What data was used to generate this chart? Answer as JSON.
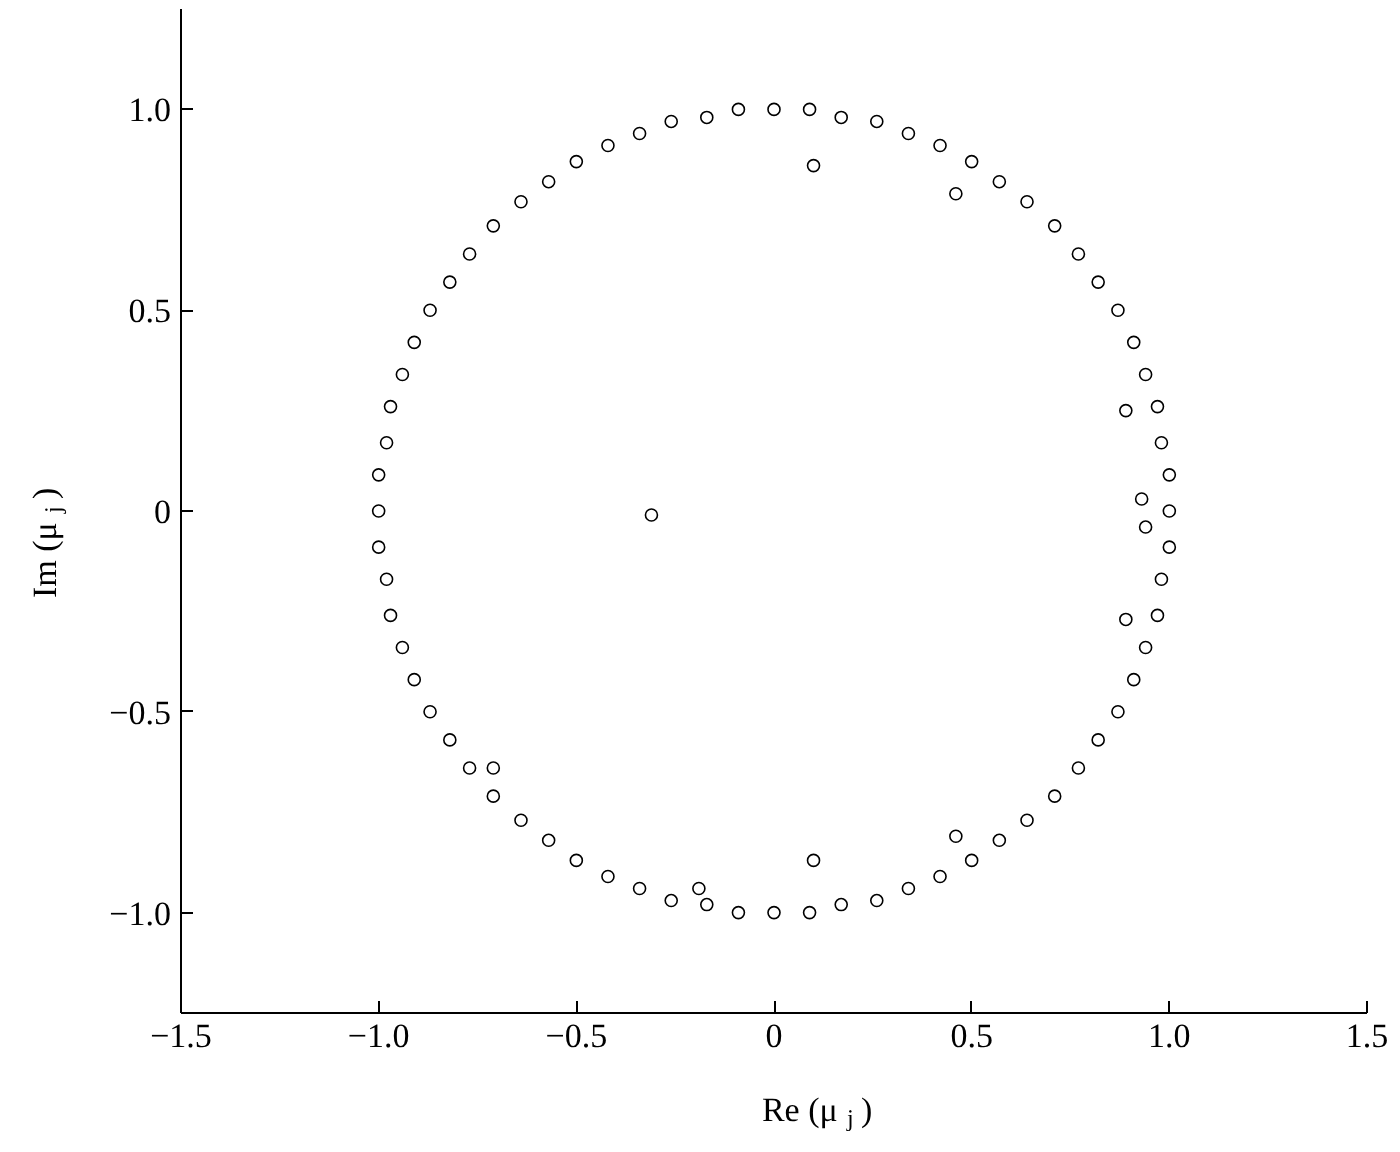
{
  "chart_data": {
    "type": "scatter",
    "xlabel": "Re (μ$_{j}$)",
    "ylabel": "Im (μ$_{j}$)",
    "xlim": [
      -1.5,
      1.5
    ],
    "ylim": [
      -1.25,
      1.25
    ],
    "xticks": [
      {
        "value": -1.5,
        "label": "−1.5"
      },
      {
        "value": -1.0,
        "label": "−1.0"
      },
      {
        "value": -0.5,
        "label": "−0.5"
      },
      0,
      {
        "value": 0.5,
        "label": "0.5"
      },
      {
        "value": 1.0,
        "label": "1.0"
      },
      {
        "value": 1.5,
        "label": "1.5"
      }
    ],
    "yticks": [
      {
        "value": -1.0,
        "label": "−1.0"
      },
      {
        "value": -0.5,
        "label": "−0.5"
      },
      0,
      {
        "value": 0.5,
        "label": "0.5"
      },
      {
        "value": 1.0,
        "label": "1.0"
      }
    ],
    "grid": false,
    "marker": "circle",
    "series": [
      {
        "color": "#000000",
        "x": [
          1.0,
          1.0,
          0.98,
          0.97,
          0.94,
          0.91,
          0.87,
          0.82,
          0.77,
          0.71,
          0.64,
          0.57,
          0.5,
          0.42,
          0.34,
          0.26,
          0.17,
          0.09,
          0.0,
          -0.09,
          -0.17,
          -0.26,
          -0.34,
          -0.42,
          -0.5,
          -0.57,
          -0.64,
          -0.71,
          -0.77,
          -0.82,
          -0.87,
          -0.91,
          -0.94,
          -0.97,
          -0.98,
          -1.0,
          -1.0,
          -1.0,
          -0.98,
          -0.97,
          -0.94,
          -0.91,
          -0.87,
          -0.82,
          -0.77,
          -0.71,
          -0.64,
          -0.57,
          -0.5,
          -0.42,
          -0.34,
          -0.26,
          -0.17,
          -0.09,
          0.0,
          0.09,
          0.17,
          0.26,
          0.34,
          0.42,
          0.5,
          0.57,
          0.64,
          0.71,
          0.77,
          0.82,
          0.87,
          0.91,
          0.94,
          0.97,
          0.98,
          1.0,
          -0.31,
          0.1,
          0.46,
          0.89,
          0.93,
          0.94,
          0.89,
          0.46,
          0.1,
          -0.19,
          -0.71
        ],
        "values": [
          0.0,
          0.09,
          0.17,
          0.26,
          0.34,
          0.42,
          0.5,
          0.57,
          0.64,
          0.71,
          0.77,
          0.82,
          0.87,
          0.91,
          0.94,
          0.97,
          0.98,
          1.0,
          1.0,
          1.0,
          0.98,
          0.97,
          0.94,
          0.91,
          0.87,
          0.82,
          0.77,
          0.71,
          0.64,
          0.57,
          0.5,
          0.42,
          0.34,
          0.26,
          0.17,
          0.09,
          0.0,
          -0.09,
          -0.17,
          -0.26,
          -0.34,
          -0.42,
          -0.5,
          -0.57,
          -0.64,
          -0.71,
          -0.77,
          -0.82,
          -0.87,
          -0.91,
          -0.94,
          -0.97,
          -0.98,
          -1.0,
          -1.0,
          -1.0,
          -0.98,
          -0.97,
          -0.94,
          -0.91,
          -0.87,
          -0.82,
          -0.77,
          -0.71,
          -0.64,
          -0.57,
          -0.5,
          -0.42,
          -0.34,
          -0.26,
          -0.17,
          -0.09,
          -0.01,
          0.86,
          0.79,
          0.25,
          0.03,
          -0.04,
          -0.27,
          -0.81,
          -0.87,
          -0.94,
          -0.64
        ]
      }
    ]
  }
}
